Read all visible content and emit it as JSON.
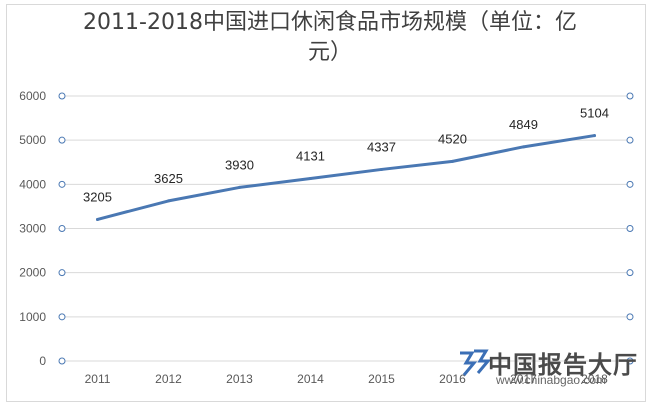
{
  "chart_data": {
    "type": "line",
    "title": "2011-2018中国进口休闲食品市场规模（单位：亿元）",
    "title_line1": "2011-2018中国进口休闲食品市场规模（单位：亿",
    "title_line2": "元）",
    "categories": [
      "2011",
      "2012",
      "2013",
      "2014",
      "2015",
      "2016",
      "2017",
      "2018"
    ],
    "values": [
      3205,
      3625,
      3930,
      4131,
      4337,
      4520,
      4849,
      5104
    ],
    "yticks": [
      "0",
      "1000",
      "2000",
      "3000",
      "4000",
      "5000",
      "6000"
    ],
    "ylim": [
      0,
      6000
    ],
    "xlabel": "",
    "ylabel": "",
    "grid": true,
    "line_color": "#4a78b3",
    "grid_color": "#d9d9d9"
  },
  "watermark": {
    "text": "中国报告大厅",
    "url": "www.chinabgao.com",
    "color": "#3b6fb6"
  }
}
